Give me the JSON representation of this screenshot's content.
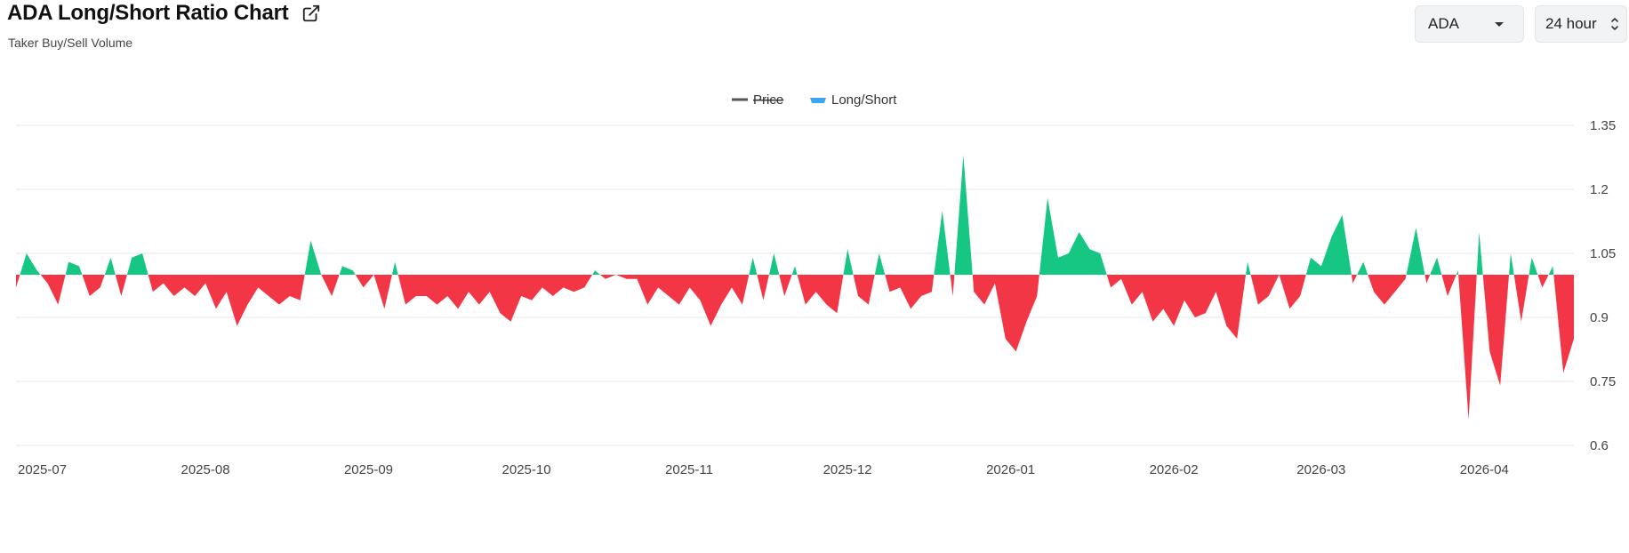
{
  "header": {
    "title": "ADA Long/Short Ratio Chart",
    "subtitle": "Taker Buy/Sell Volume",
    "coin_select": "ADA",
    "period_select": "24 hour"
  },
  "legend": [
    {
      "label": "Price",
      "color": "#555555",
      "disabled": true
    },
    {
      "label": "Long/Short",
      "color": "#3ea6f2",
      "disabled": false
    }
  ],
  "colors": {
    "above": "#16c784",
    "below": "#f23645",
    "grid": "#e6e6e6"
  },
  "chart_data": {
    "type": "area",
    "series_name": "Long/Short",
    "baseline": 1.0,
    "ylim": [
      0.6,
      1.35
    ],
    "yticks": [
      "1.35",
      "1.2",
      "1.05",
      "0.9",
      "0.75",
      "0.6"
    ],
    "x_range": [
      "2025-07-01",
      "2026-04-23"
    ],
    "x_tick_labels": [
      "2025-07",
      "2025-08",
      "2025-09",
      "2025-10",
      "2025-11",
      "2025-12",
      "2026-01",
      "2026-02",
      "2026-03",
      "2026-04"
    ],
    "points": [
      [
        "2025-07-01",
        0.97
      ],
      [
        "2025-07-03",
        1.05
      ],
      [
        "2025-07-05",
        1.01
      ],
      [
        "2025-07-07",
        0.98
      ],
      [
        "2025-07-09",
        0.93
      ],
      [
        "2025-07-11",
        1.03
      ],
      [
        "2025-07-13",
        1.02
      ],
      [
        "2025-07-15",
        0.95
      ],
      [
        "2025-07-17",
        0.97
      ],
      [
        "2025-07-19",
        1.04
      ],
      [
        "2025-07-21",
        0.95
      ],
      [
        "2025-07-23",
        1.04
      ],
      [
        "2025-07-25",
        1.05
      ],
      [
        "2025-07-27",
        0.96
      ],
      [
        "2025-07-29",
        0.98
      ],
      [
        "2025-07-31",
        0.95
      ],
      [
        "2025-08-02",
        0.97
      ],
      [
        "2025-08-04",
        0.95
      ],
      [
        "2025-08-06",
        0.98
      ],
      [
        "2025-08-08",
        0.92
      ],
      [
        "2025-08-10",
        0.96
      ],
      [
        "2025-08-12",
        0.88
      ],
      [
        "2025-08-14",
        0.93
      ],
      [
        "2025-08-16",
        0.97
      ],
      [
        "2025-08-18",
        0.95
      ],
      [
        "2025-08-20",
        0.93
      ],
      [
        "2025-08-22",
        0.95
      ],
      [
        "2025-08-24",
        0.94
      ],
      [
        "2025-08-26",
        1.08
      ],
      [
        "2025-08-28",
        1.0
      ],
      [
        "2025-08-30",
        0.95
      ],
      [
        "2025-09-01",
        1.02
      ],
      [
        "2025-09-03",
        1.01
      ],
      [
        "2025-09-05",
        0.97
      ],
      [
        "2025-09-07",
        1.0
      ],
      [
        "2025-09-09",
        0.92
      ],
      [
        "2025-09-11",
        1.03
      ],
      [
        "2025-09-13",
        0.93
      ],
      [
        "2025-09-15",
        0.95
      ],
      [
        "2025-09-17",
        0.95
      ],
      [
        "2025-09-19",
        0.93
      ],
      [
        "2025-09-21",
        0.95
      ],
      [
        "2025-09-23",
        0.92
      ],
      [
        "2025-09-25",
        0.96
      ],
      [
        "2025-09-27",
        0.93
      ],
      [
        "2025-09-29",
        0.96
      ],
      [
        "2025-10-01",
        0.91
      ],
      [
        "2025-10-03",
        0.89
      ],
      [
        "2025-10-05",
        0.95
      ],
      [
        "2025-10-07",
        0.94
      ],
      [
        "2025-10-09",
        0.97
      ],
      [
        "2025-10-11",
        0.95
      ],
      [
        "2025-10-13",
        0.97
      ],
      [
        "2025-10-15",
        0.96
      ],
      [
        "2025-10-17",
        0.97
      ],
      [
        "2025-10-19",
        1.01
      ],
      [
        "2025-10-21",
        0.99
      ],
      [
        "2025-10-23",
        1.0
      ],
      [
        "2025-10-25",
        0.99
      ],
      [
        "2025-10-27",
        0.99
      ],
      [
        "2025-10-29",
        0.93
      ],
      [
        "2025-10-31",
        0.97
      ],
      [
        "2025-11-02",
        0.95
      ],
      [
        "2025-11-04",
        0.93
      ],
      [
        "2025-11-06",
        0.97
      ],
      [
        "2025-11-08",
        0.94
      ],
      [
        "2025-11-10",
        0.88
      ],
      [
        "2025-11-12",
        0.93
      ],
      [
        "2025-11-14",
        0.97
      ],
      [
        "2025-11-16",
        0.93
      ],
      [
        "2025-11-18",
        1.04
      ],
      [
        "2025-11-20",
        0.94
      ],
      [
        "2025-11-22",
        1.05
      ],
      [
        "2025-11-24",
        0.95
      ],
      [
        "2025-11-26",
        1.02
      ],
      [
        "2025-11-28",
        0.93
      ],
      [
        "2025-11-30",
        0.96
      ],
      [
        "2025-12-02",
        0.93
      ],
      [
        "2025-12-04",
        0.91
      ],
      [
        "2025-12-06",
        1.06
      ],
      [
        "2025-12-08",
        0.95
      ],
      [
        "2025-12-10",
        0.93
      ],
      [
        "2025-12-12",
        1.05
      ],
      [
        "2025-12-14",
        0.96
      ],
      [
        "2025-12-16",
        0.97
      ],
      [
        "2025-12-18",
        0.92
      ],
      [
        "2025-12-20",
        0.95
      ],
      [
        "2025-12-22",
        0.96
      ],
      [
        "2025-12-24",
        1.15
      ],
      [
        "2025-12-26",
        0.95
      ],
      [
        "2025-12-28",
        1.28
      ],
      [
        "2025-12-30",
        0.96
      ],
      [
        "2026-01-01",
        0.93
      ],
      [
        "2026-01-03",
        0.98
      ],
      [
        "2026-01-05",
        0.85
      ],
      [
        "2026-01-07",
        0.82
      ],
      [
        "2026-01-09",
        0.89
      ],
      [
        "2026-01-11",
        0.95
      ],
      [
        "2026-01-13",
        1.18
      ],
      [
        "2026-01-15",
        1.04
      ],
      [
        "2026-01-17",
        1.05
      ],
      [
        "2026-01-19",
        1.1
      ],
      [
        "2026-01-21",
        1.06
      ],
      [
        "2026-01-23",
        1.05
      ],
      [
        "2026-01-25",
        0.97
      ],
      [
        "2026-01-27",
        0.99
      ],
      [
        "2026-01-29",
        0.93
      ],
      [
        "2026-01-31",
        0.96
      ],
      [
        "2026-02-02",
        0.89
      ],
      [
        "2026-02-04",
        0.92
      ],
      [
        "2026-02-06",
        0.88
      ],
      [
        "2026-02-08",
        0.94
      ],
      [
        "2026-02-10",
        0.9
      ],
      [
        "2026-02-12",
        0.91
      ],
      [
        "2026-02-14",
        0.96
      ],
      [
        "2026-02-16",
        0.88
      ],
      [
        "2026-02-18",
        0.85
      ],
      [
        "2026-02-20",
        1.03
      ],
      [
        "2026-02-22",
        0.93
      ],
      [
        "2026-02-24",
        0.95
      ],
      [
        "2026-02-26",
        1.0
      ],
      [
        "2026-02-28",
        0.92
      ],
      [
        "2026-03-02",
        0.95
      ],
      [
        "2026-03-04",
        1.04
      ],
      [
        "2026-03-06",
        1.02
      ],
      [
        "2026-03-08",
        1.09
      ],
      [
        "2026-03-10",
        1.14
      ],
      [
        "2026-03-12",
        0.98
      ],
      [
        "2026-03-14",
        1.03
      ],
      [
        "2026-03-16",
        0.96
      ],
      [
        "2026-03-18",
        0.93
      ],
      [
        "2026-03-20",
        0.96
      ],
      [
        "2026-03-22",
        0.99
      ],
      [
        "2026-03-24",
        1.11
      ],
      [
        "2026-03-26",
        0.98
      ],
      [
        "2026-03-28",
        1.04
      ],
      [
        "2026-03-30",
        0.95
      ],
      [
        "2026-04-01",
        1.01
      ],
      [
        "2026-04-03",
        0.66
      ],
      [
        "2026-04-05",
        1.1
      ],
      [
        "2026-04-07",
        0.82
      ],
      [
        "2026-04-09",
        0.74
      ],
      [
        "2026-04-11",
        1.05
      ],
      [
        "2026-04-13",
        0.89
      ],
      [
        "2026-04-15",
        1.04
      ],
      [
        "2026-04-17",
        0.97
      ],
      [
        "2026-04-19",
        1.02
      ],
      [
        "2026-04-21",
        0.77
      ],
      [
        "2026-04-23",
        0.85
      ]
    ]
  }
}
